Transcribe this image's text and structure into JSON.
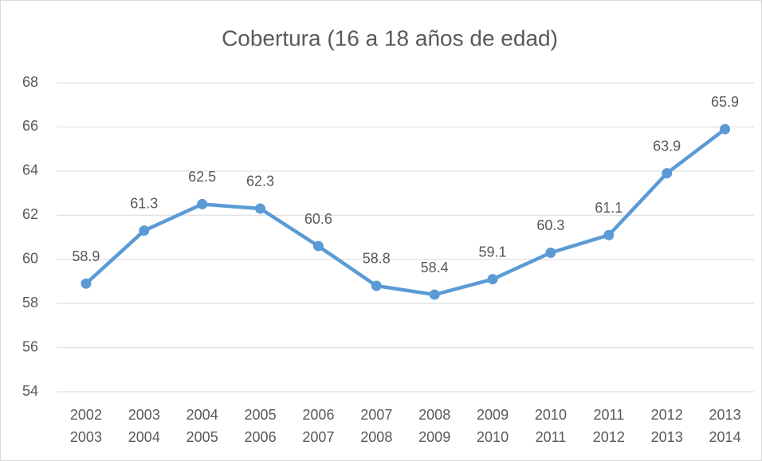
{
  "chart_data": {
    "type": "line",
    "title": "Cobertura (16 a 18 años de edad)",
    "categories": [
      [
        "2002",
        "2003"
      ],
      [
        "2003",
        "2004"
      ],
      [
        "2004",
        "2005"
      ],
      [
        "2005",
        "2006"
      ],
      [
        "2006",
        "2007"
      ],
      [
        "2007",
        "2008"
      ],
      [
        "2008",
        "2009"
      ],
      [
        "2009",
        "2010"
      ],
      [
        "2010",
        "2011"
      ],
      [
        "2011",
        "2012"
      ],
      [
        "2012",
        "2013"
      ],
      [
        "2013",
        "2014"
      ]
    ],
    "values": [
      58.9,
      61.3,
      62.5,
      62.3,
      60.6,
      58.8,
      58.4,
      59.1,
      60.3,
      61.1,
      63.9,
      65.9
    ],
    "color": "#5b9bd5",
    "ylim": [
      54,
      68
    ],
    "yticks": [
      54,
      56,
      58,
      60,
      62,
      64,
      66,
      68
    ],
    "grid": true
  }
}
